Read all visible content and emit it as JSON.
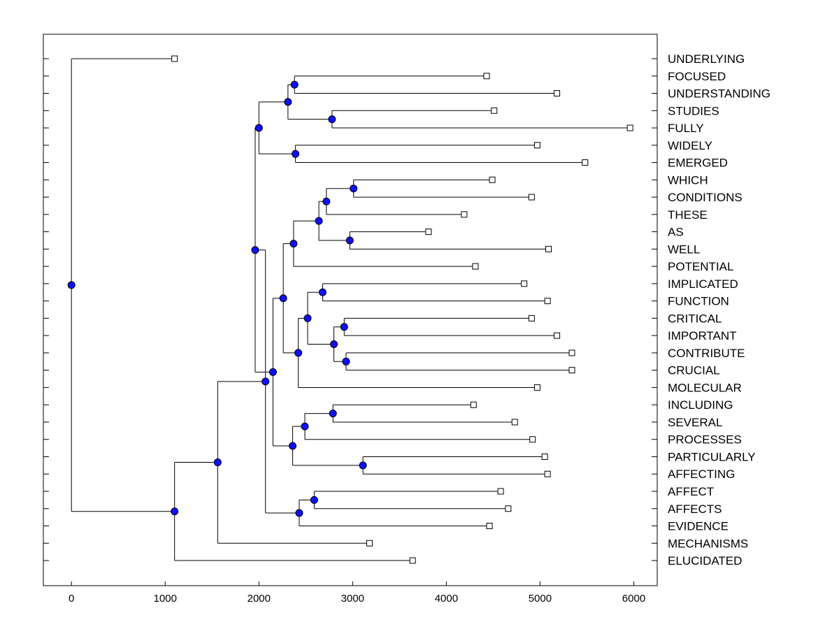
{
  "chart_data": {
    "type": "dendrogram",
    "title": "",
    "xlabel": "",
    "ylabel": "",
    "xlim": [
      -300,
      6250
    ],
    "xticks": [
      0,
      1000,
      2000,
      3000,
      4000,
      5000,
      6000
    ],
    "xtick_labels": [
      "0",
      "1000",
      "2000",
      "3000",
      "4000",
      "5000",
      "6000"
    ],
    "colors": {
      "node_fill": "#1010ff",
      "node_stroke": "#000000",
      "line": "#000000",
      "leaf_fill": "#ffffff"
    },
    "leaves": [
      {
        "label": "UNDERLYING",
        "value": 1100
      },
      {
        "label": "FOCUSED",
        "value": 4430
      },
      {
        "label": "UNDERSTANDING",
        "value": 5180
      },
      {
        "label": "STUDIES",
        "value": 4510
      },
      {
        "label": "FULLY",
        "value": 5960
      },
      {
        "label": "WIDELY",
        "value": 4970
      },
      {
        "label": "EMERGED",
        "value": 5480
      },
      {
        "label": "WHICH",
        "value": 4490
      },
      {
        "label": "CONDITIONS",
        "value": 4910
      },
      {
        "label": "THESE",
        "value": 4190
      },
      {
        "label": "AS",
        "value": 3810
      },
      {
        "label": "WELL",
        "value": 5090
      },
      {
        "label": "POTENTIAL",
        "value": 4310
      },
      {
        "label": "IMPLICATED",
        "value": 4830
      },
      {
        "label": "FUNCTION",
        "value": 5080
      },
      {
        "label": "CRITICAL",
        "value": 4910
      },
      {
        "label": "IMPORTANT",
        "value": 5180
      },
      {
        "label": "CONTRIBUTE",
        "value": 5340
      },
      {
        "label": "CRUCIAL",
        "value": 5340
      },
      {
        "label": "MOLECULAR",
        "value": 4970
      },
      {
        "label": "INCLUDING",
        "value": 4290
      },
      {
        "label": "SEVERAL",
        "value": 4730
      },
      {
        "label": "PROCESSES",
        "value": 4920
      },
      {
        "label": "PARTICULARLY",
        "value": 5050
      },
      {
        "label": "AFFECTING",
        "value": 5080
      },
      {
        "label": "AFFECT",
        "value": 4580
      },
      {
        "label": "AFFECTS",
        "value": 4660
      },
      {
        "label": "EVIDENCE",
        "value": 4460
      },
      {
        "label": "MECHANISMS",
        "value": 3180
      },
      {
        "label": "ELUCIDATED",
        "value": 3640
      }
    ],
    "merges": [
      {
        "id": "n1",
        "value": 2380,
        "children": [
          "FOCUSED",
          "UNDERSTANDING"
        ]
      },
      {
        "id": "n2",
        "value": 2780,
        "children": [
          "STUDIES",
          "FULLY"
        ]
      },
      {
        "id": "n3",
        "value": 2310,
        "children": [
          "n1",
          "n2"
        ]
      },
      {
        "id": "n4",
        "value": 2390,
        "children": [
          "WIDELY",
          "EMERGED"
        ]
      },
      {
        "id": "n5",
        "value": 2000,
        "children": [
          "n3",
          "n4"
        ]
      },
      {
        "id": "n6",
        "value": 3010,
        "children": [
          "WHICH",
          "CONDITIONS"
        ]
      },
      {
        "id": "n7",
        "value": 2720,
        "children": [
          "n6",
          "THESE"
        ]
      },
      {
        "id": "n8",
        "value": 2970,
        "children": [
          "AS",
          "WELL"
        ]
      },
      {
        "id": "n9",
        "value": 2640,
        "children": [
          "n7",
          "n8"
        ]
      },
      {
        "id": "n10",
        "value": 2370,
        "children": [
          "n9",
          "POTENTIAL"
        ]
      },
      {
        "id": "n11",
        "value": 2680,
        "children": [
          "IMPLICATED",
          "FUNCTION"
        ]
      },
      {
        "id": "n12",
        "value": 2910,
        "children": [
          "CRITICAL",
          "IMPORTANT"
        ]
      },
      {
        "id": "n13",
        "value": 2930,
        "children": [
          "CONTRIBUTE",
          "CRUCIAL"
        ]
      },
      {
        "id": "n14",
        "value": 2800,
        "children": [
          "n12",
          "n13"
        ]
      },
      {
        "id": "n15",
        "value": 2520,
        "children": [
          "n11",
          "n14"
        ]
      },
      {
        "id": "n16",
        "value": 2420,
        "children": [
          "n15",
          "MOLECULAR"
        ]
      },
      {
        "id": "n17",
        "value": 2260,
        "children": [
          "n10",
          "n16"
        ]
      },
      {
        "id": "n18",
        "value": 2790,
        "children": [
          "INCLUDING",
          "SEVERAL"
        ]
      },
      {
        "id": "n19",
        "value": 2490,
        "children": [
          "n18",
          "PROCESSES"
        ]
      },
      {
        "id": "n20",
        "value": 3110,
        "children": [
          "PARTICULARLY",
          "AFFECTING"
        ]
      },
      {
        "id": "n21",
        "value": 2360,
        "children": [
          "n19",
          "n20"
        ]
      },
      {
        "id": "n22",
        "value": 2150,
        "children": [
          "n17",
          "n21"
        ]
      },
      {
        "id": "n23",
        "value": 1960,
        "children": [
          "n5",
          "n22"
        ]
      },
      {
        "id": "n24",
        "value": 2590,
        "children": [
          "AFFECT",
          "AFFECTS"
        ]
      },
      {
        "id": "n25",
        "value": 2430,
        "children": [
          "n24",
          "EVIDENCE"
        ]
      },
      {
        "id": "n26",
        "value": 2070,
        "children": [
          "n23",
          "n25"
        ]
      },
      {
        "id": "n27",
        "value": 1560,
        "children": [
          "n26",
          "MECHANISMS"
        ]
      },
      {
        "id": "n28",
        "value": 1100,
        "children": [
          "n27",
          "ELUCIDATED"
        ]
      },
      {
        "id": "root",
        "value": 0,
        "children": [
          "UNDERLYING",
          "n28"
        ]
      }
    ]
  }
}
